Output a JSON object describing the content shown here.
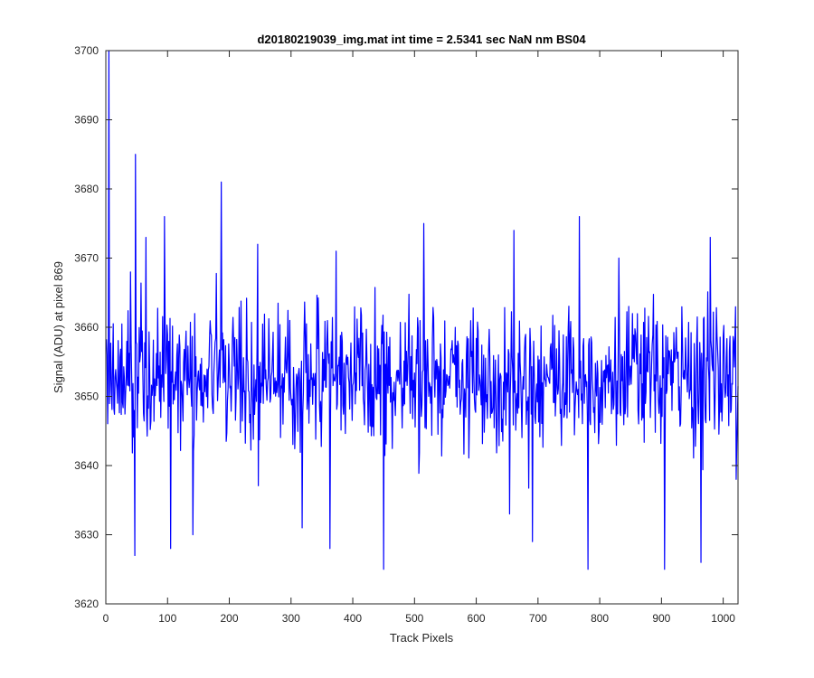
{
  "chart_data": {
    "type": "line",
    "title": "d20180219039_img.mat int time = 2.5341 sec  NaN nm BS04",
    "xlabel": "Track Pixels",
    "ylabel": "Signal (ADU) at pixel 869",
    "xlim": [
      0,
      1024
    ],
    "ylim": [
      3620,
      3700
    ],
    "xticks": [
      0,
      100,
      200,
      300,
      400,
      500,
      600,
      700,
      800,
      900,
      1000
    ],
    "yticks": [
      3620,
      3630,
      3640,
      3650,
      3660,
      3670,
      3680,
      3690,
      3700
    ],
    "grid": false,
    "series": [
      {
        "color": "#0000ff",
        "baseline": 3653,
        "noise_amplitude": 5,
        "n_points": 1024,
        "approximate": true,
        "peaks": [
          {
            "x": 4,
            "y": 3700
          },
          {
            "x": 47,
            "y": 3685
          },
          {
            "x": 186,
            "y": 3681
          },
          {
            "x": 94,
            "y": 3676
          },
          {
            "x": 766,
            "y": 3676
          },
          {
            "x": 64,
            "y": 3673
          },
          {
            "x": 514,
            "y": 3675
          },
          {
            "x": 660,
            "y": 3674
          },
          {
            "x": 978,
            "y": 3673
          },
          {
            "x": 245,
            "y": 3672
          },
          {
            "x": 372,
            "y": 3671
          },
          {
            "x": 830,
            "y": 3670
          }
        ],
        "troughs": [
          {
            "x": 46,
            "y": 3627
          },
          {
            "x": 104,
            "y": 3628
          },
          {
            "x": 140,
            "y": 3630
          },
          {
            "x": 317,
            "y": 3631
          },
          {
            "x": 362,
            "y": 3628
          },
          {
            "x": 449,
            "y": 3625
          },
          {
            "x": 653,
            "y": 3633
          },
          {
            "x": 690,
            "y": 3629
          },
          {
            "x": 780,
            "y": 3625
          },
          {
            "x": 904,
            "y": 3625
          },
          {
            "x": 963,
            "y": 3626
          },
          {
            "x": 1020,
            "y": 3638
          }
        ]
      }
    ]
  }
}
